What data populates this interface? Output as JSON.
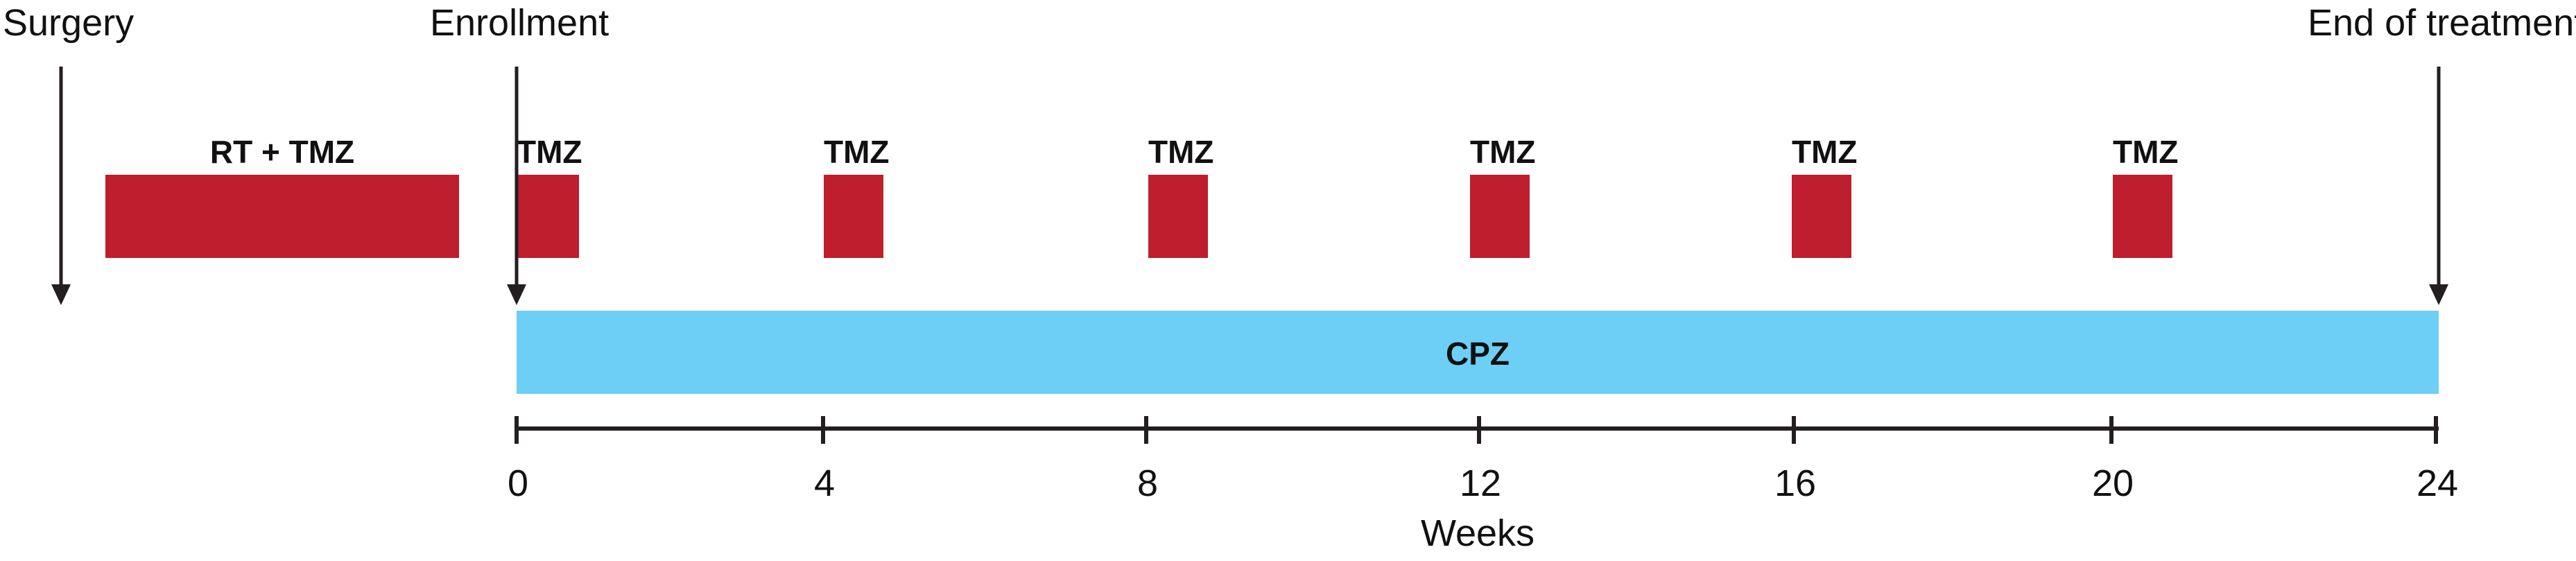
{
  "events": {
    "surgery": "Surgery",
    "enrollment": "Enrollment",
    "end": "End of treatment"
  },
  "phases": {
    "rt_tmz": "RT + TMZ",
    "tmz": [
      "TMZ",
      "TMZ",
      "TMZ",
      "TMZ",
      "TMZ",
      "TMZ"
    ],
    "cpz": "CPZ"
  },
  "axis": {
    "label": "Weeks",
    "ticks": [
      "0",
      "4",
      "8",
      "12",
      "16",
      "20",
      "24"
    ]
  },
  "colors": {
    "tmz": "#BE1E2D",
    "cpz": "#6DCFF6",
    "line": "#231F20"
  }
}
